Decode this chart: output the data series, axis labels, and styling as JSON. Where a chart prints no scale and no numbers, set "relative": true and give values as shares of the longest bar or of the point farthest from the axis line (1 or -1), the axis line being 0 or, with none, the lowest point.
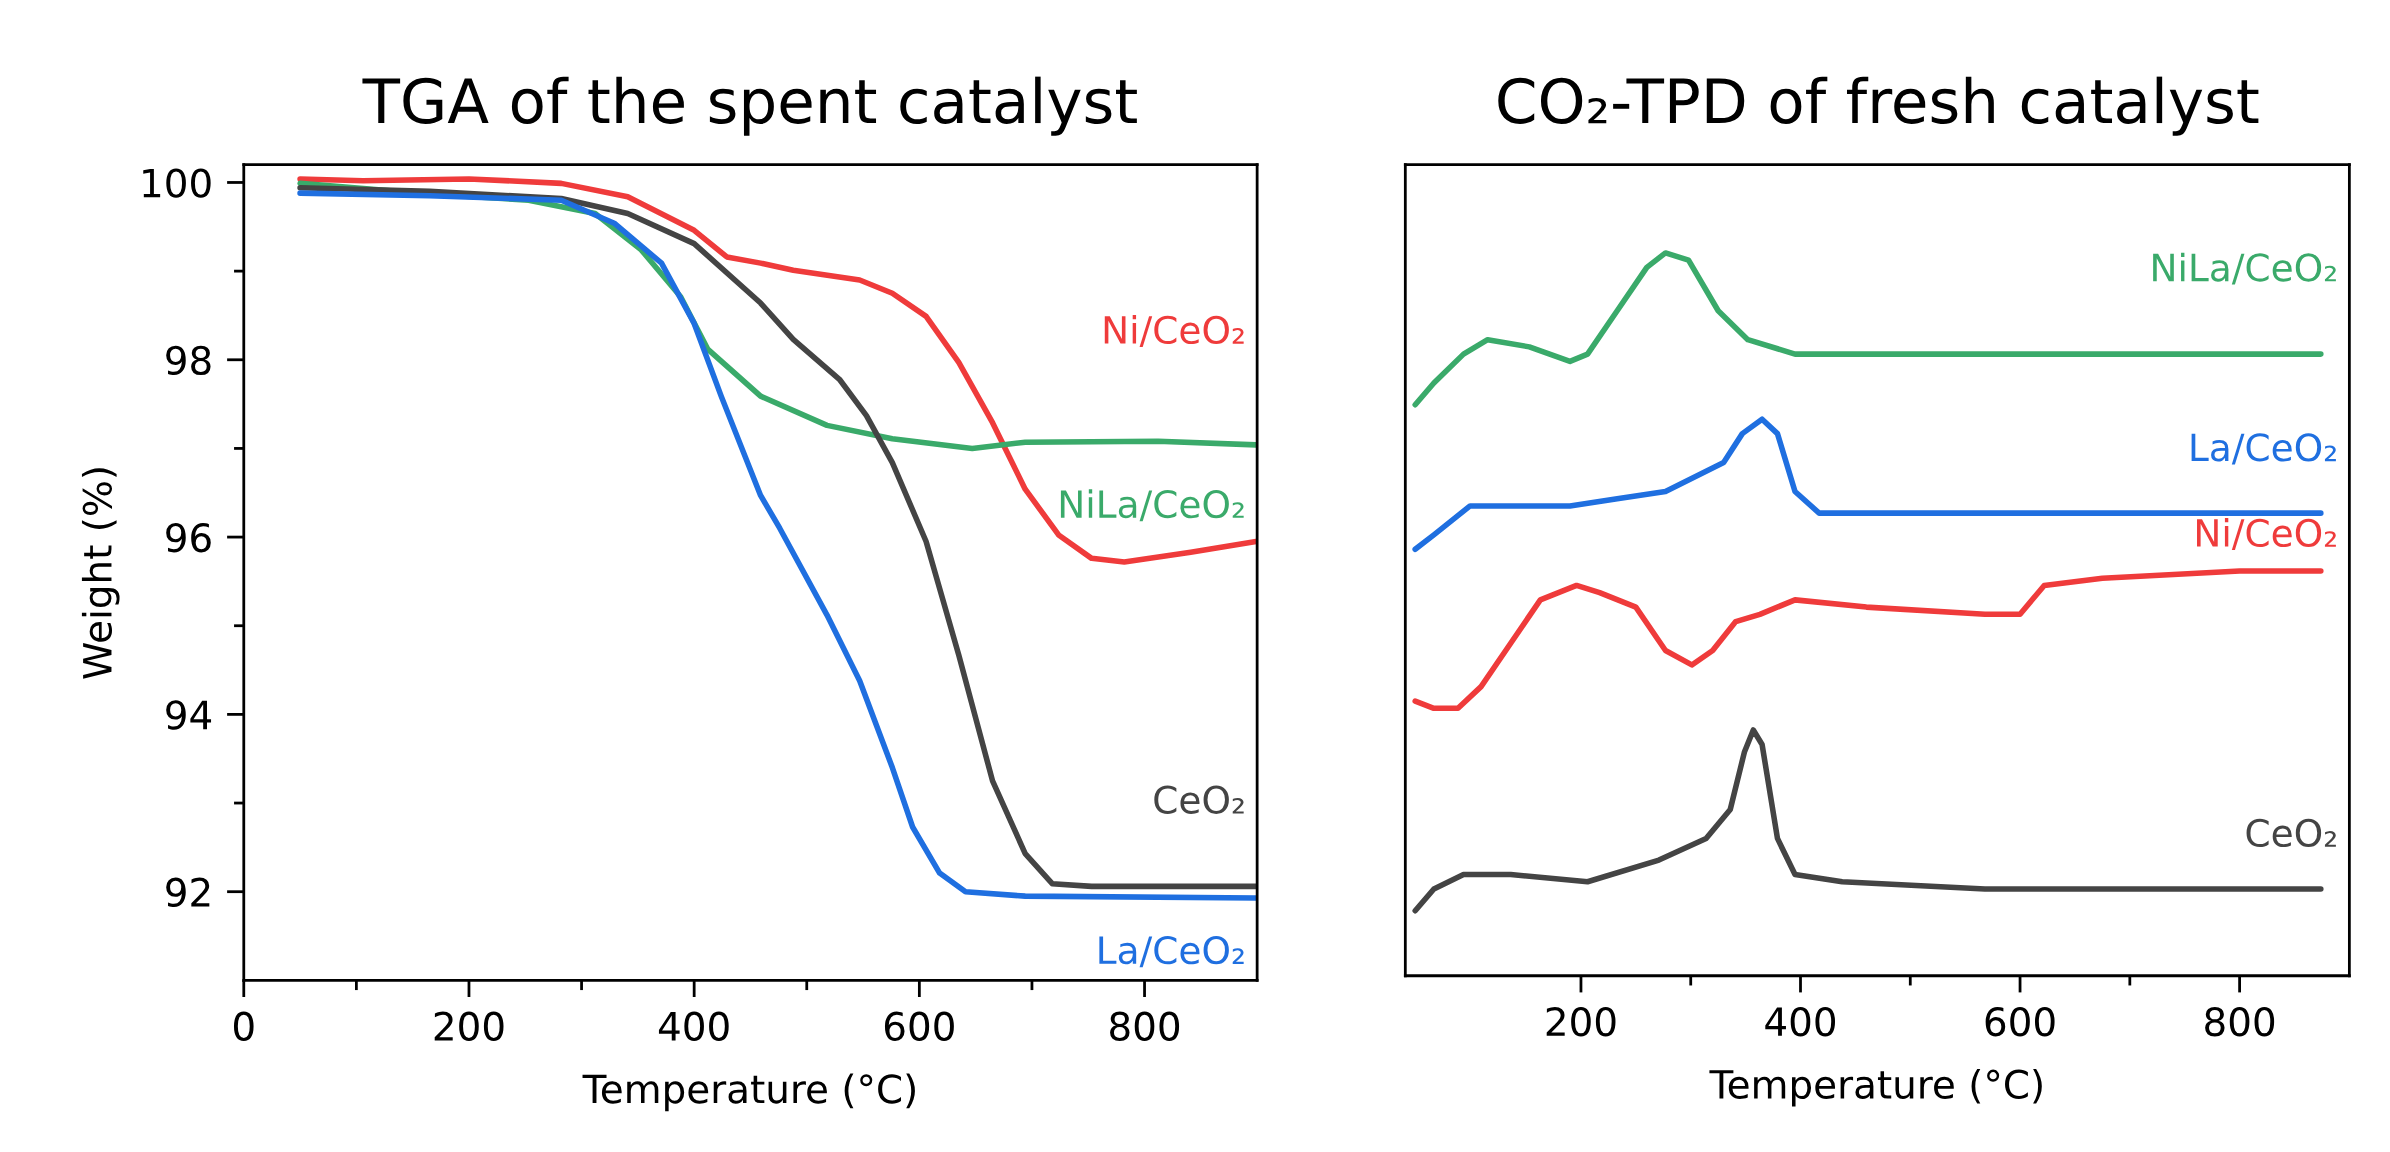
{
  "chart_data": [
    {
      "type": "line",
      "title": "TGA of the spent catalyst",
      "xlabel": "Temperature (°C)",
      "ylabel": "Weight (%)",
      "xlim": [
        0,
        900
      ],
      "ylim": [
        91,
        100.2
      ],
      "xticks": [
        0,
        200,
        400,
        600,
        800
      ],
      "yticks": [
        92,
        94,
        96,
        98,
        100
      ],
      "series": [
        {
          "name": "Ni/CeO₂",
          "color": "#ef3b3b",
          "x": [
            50,
            106,
            200,
            282,
            341,
            400,
            429,
            459,
            488,
            547,
            576,
            606,
            635,
            665,
            694,
            724,
            753,
            782,
            841,
            899
          ],
          "values": [
            100.04,
            100.02,
            100.04,
            99.99,
            99.84,
            99.46,
            99.16,
            99.09,
            99.01,
            98.9,
            98.75,
            98.49,
            97.97,
            97.29,
            96.54,
            96.02,
            95.76,
            95.72,
            95.83,
            95.95
          ]
        },
        {
          "name": "NiLa/CeO₂",
          "color": "#3aaa6a",
          "x": [
            50,
            165,
            253,
            312,
            353,
            388,
            412,
            459,
            518,
            576,
            647,
            694,
            812,
            899
          ],
          "values": [
            99.99,
            99.87,
            99.8,
            99.65,
            99.24,
            98.71,
            98.12,
            97.59,
            97.26,
            97.11,
            97.0,
            97.07,
            97.08,
            97.04
          ]
        },
        {
          "name": "CeO₂",
          "color": "#444444",
          "x": [
            50,
            165,
            282,
            341,
            400,
            459,
            488,
            529,
            553,
            576,
            606,
            635,
            665,
            694,
            718,
            753,
            899
          ],
          "values": [
            99.94,
            99.9,
            99.82,
            99.65,
            99.31,
            98.64,
            98.23,
            97.78,
            97.37,
            96.84,
            95.95,
            94.67,
            93.25,
            92.43,
            92.09,
            92.06,
            92.06
          ]
        },
        {
          "name": "La/CeO₂",
          "color": "#1f6fe0",
          "x": [
            50,
            165,
            282,
            329,
            371,
            400,
            424,
            459,
            476,
            518,
            547,
            576,
            594,
            618,
            641,
            694,
            899
          ],
          "values": [
            99.88,
            99.85,
            99.8,
            99.54,
            99.09,
            98.41,
            97.59,
            96.47,
            96.1,
            95.12,
            94.38,
            93.4,
            92.73,
            92.21,
            92.0,
            91.95,
            91.93
          ]
        }
      ]
    },
    {
      "type": "line",
      "title": "CO₂-TPD of fresh catalyst",
      "xlabel": "Temperature (°C)",
      "relative": true,
      "tick_labels": "x",
      "xlim": [
        40,
        900
      ],
      "xticks": [
        200,
        400,
        600,
        800
      ],
      "series": [
        {
          "name": "NiLa/CeO₂",
          "color": "#3aaa6a",
          "x": [
            49,
            66,
            93,
            115,
            153,
            190,
            206,
            233,
            260,
            277,
            298,
            325,
            352,
            395,
            438,
            487,
            525,
            622,
            729,
            800,
            874
          ],
          "values": [
            0.79,
            0.82,
            0.86,
            0.88,
            0.87,
            0.85,
            0.86,
            0.92,
            0.98,
            1.0,
            0.99,
            0.92,
            0.88,
            0.86,
            0.86,
            0.86,
            0.86,
            0.86,
            0.86,
            0.86,
            0.86
          ]
        },
        {
          "name": "La/CeO₂",
          "color": "#1f6fe0",
          "x": [
            49,
            66,
            99,
            136,
            190,
            233,
            277,
            330,
            347,
            365,
            379,
            395,
            417,
            460,
            514,
            589,
            675,
            800,
            874
          ],
          "values": [
            0.59,
            0.61,
            0.65,
            0.65,
            0.65,
            0.66,
            0.67,
            0.71,
            0.75,
            0.77,
            0.75,
            0.67,
            0.64,
            0.64,
            0.64,
            0.64,
            0.64,
            0.64,
            0.64
          ]
        },
        {
          "name": "Ni/CeO₂",
          "color": "#ef3b3b",
          "x": [
            49,
            66,
            88,
            109,
            136,
            163,
            196,
            217,
            250,
            277,
            301,
            320,
            341,
            363,
            395,
            460,
            568,
            600,
            622,
            675,
            800,
            874
          ],
          "values": [
            0.38,
            0.37,
            0.37,
            0.4,
            0.46,
            0.52,
            0.54,
            0.53,
            0.51,
            0.45,
            0.43,
            0.45,
            0.49,
            0.5,
            0.52,
            0.51,
            0.5,
            0.5,
            0.54,
            0.55,
            0.56,
            0.56
          ]
        },
        {
          "name": "CeO₂",
          "color": "#444444",
          "x": [
            49,
            66,
            93,
            136,
            206,
            271,
            314,
            336,
            349,
            357,
            365,
            379,
            395,
            438,
            568,
            675,
            800,
            874
          ],
          "values": [
            0.09,
            0.12,
            0.14,
            0.14,
            0.13,
            0.16,
            0.19,
            0.23,
            0.31,
            0.34,
            0.32,
            0.19,
            0.14,
            0.13,
            0.12,
            0.12,
            0.12,
            0.12
          ]
        }
      ]
    }
  ]
}
